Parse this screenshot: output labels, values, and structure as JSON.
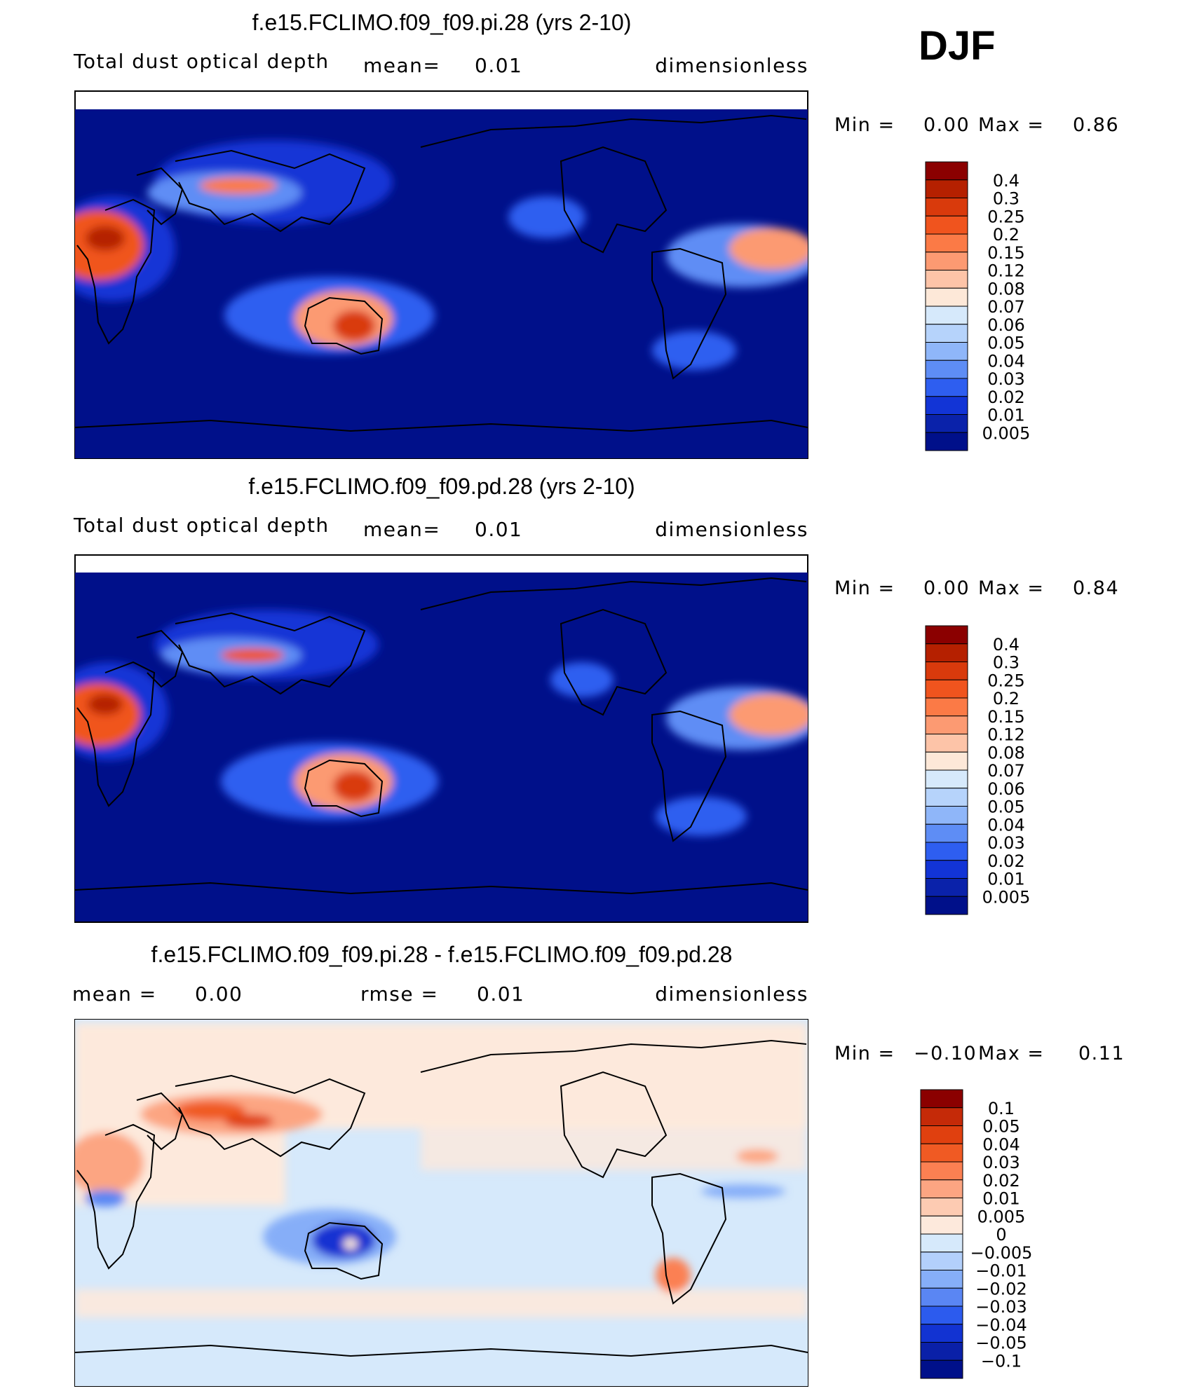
{
  "season": "DJF",
  "panels": [
    {
      "title": "f.e15.FCLIMO.f09_f09.pi.28 (yrs 2-10)",
      "left_label": "Total dust optical depth",
      "mid_label": "mean=",
      "mid_value": "0.01",
      "right_label": "dimensionless",
      "min_label": "Min =",
      "min_value": "0.00",
      "max_label": "Max =",
      "max_value": "0.86",
      "colorbar": {
        "labels": [
          "0.4",
          "0.3",
          "0.25",
          "0.2",
          "0.15",
          "0.12",
          "0.08",
          "0.07",
          "0.06",
          "0.05",
          "0.04",
          "0.03",
          "0.02",
          "0.01",
          "0.005"
        ],
        "colors": [
          "#8b0000",
          "#b52000",
          "#d93a0c",
          "#f0541e",
          "#fb7a46",
          "#fc9a72",
          "#fdc4a8",
          "#fde8d8",
          "#d6e9fb",
          "#b6d3fb",
          "#8fb6f9",
          "#5e8df5",
          "#2e5ef0",
          "#1234d6",
          "#0a22aa",
          "#00108a"
        ]
      }
    },
    {
      "title": "f.e15.FCLIMO.f09_f09.pd.28 (yrs 2-10)",
      "left_label": "Total dust optical depth",
      "mid_label": "mean=",
      "mid_value": "0.01",
      "right_label": "dimensionless",
      "min_label": "Min =",
      "min_value": "0.00",
      "max_label": "Max =",
      "max_value": "0.84",
      "colorbar": {
        "labels": [
          "0.4",
          "0.3",
          "0.25",
          "0.2",
          "0.15",
          "0.12",
          "0.08",
          "0.07",
          "0.06",
          "0.05",
          "0.04",
          "0.03",
          "0.02",
          "0.01",
          "0.005"
        ],
        "colors": [
          "#8b0000",
          "#b52000",
          "#d93a0c",
          "#f0541e",
          "#fb7a46",
          "#fc9a72",
          "#fdc4a8",
          "#fde8d8",
          "#d6e9fb",
          "#b6d3fb",
          "#8fb6f9",
          "#5e8df5",
          "#2e5ef0",
          "#1234d6",
          "#0a22aa",
          "#00108a"
        ]
      }
    },
    {
      "title": "f.e15.FCLIMO.f09_f09.pi.28 - f.e15.FCLIMO.f09_f09.pd.28",
      "left_label": "mean =",
      "left_value": "0.00",
      "mid_label": "rmse =",
      "mid_value": "0.01",
      "right_label": "dimensionless",
      "min_label": "Min =",
      "min_value": "−0.10",
      "max_label": "Max =",
      "max_value": "0.11",
      "colorbar": {
        "labels": [
          "0.1",
          "0.05",
          "0.04",
          "0.03",
          "0.02",
          "0.01",
          "0.005",
          "0",
          "−0.005",
          "−0.01",
          "−0.02",
          "−0.03",
          "−0.04",
          "−0.05",
          "−0.1"
        ],
        "colors": [
          "#8b0000",
          "#c52a08",
          "#e0400f",
          "#f05a23",
          "#fb8052",
          "#fca582",
          "#fdcbb2",
          "#fde9dc",
          "#d6e9fb",
          "#b3d0fb",
          "#86aef8",
          "#5a86f3",
          "#2c5bee",
          "#1233d2",
          "#0a20a8",
          "#00108a"
        ]
      }
    }
  ]
}
